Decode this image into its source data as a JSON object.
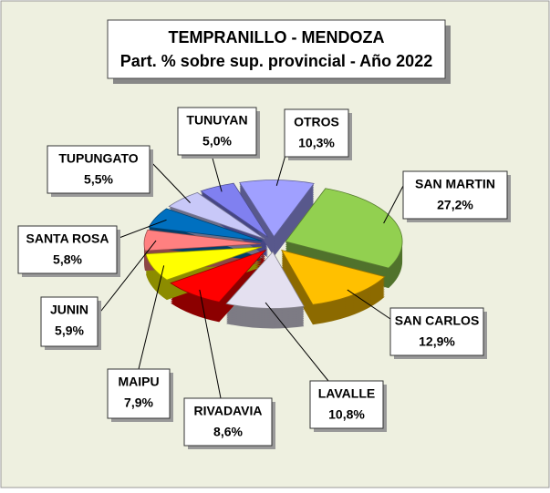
{
  "chart_data": {
    "type": "pie",
    "title": [
      "TEMPRANILLO - MENDOZA",
      "Part. % sobre sup. provincial - Año 2022"
    ],
    "categories": [
      "SAN MARTIN",
      "SAN CARLOS",
      "LAVALLE",
      "RIVADAVIA",
      "MAIPU",
      "JUNIN",
      "SANTA ROSA",
      "TUPUNGATO",
      "TUNUYAN",
      "OTROS"
    ],
    "values": [
      27.2,
      12.9,
      10.8,
      8.6,
      7.9,
      5.9,
      5.8,
      5.5,
      5.0,
      10.3
    ],
    "value_labels": [
      "27,2%",
      "12,9%",
      "10,8%",
      "8,6%",
      "7,9%",
      "5,9%",
      "5,8%",
      "5,5%",
      "5,0%",
      "10,3%"
    ],
    "colors": [
      "#92d050",
      "#ffc000",
      "#e4e0f0",
      "#ff0000",
      "#ffff00",
      "#ff8080",
      "#0070c0",
      "#c8c8f8",
      "#8080f0",
      "#a0a0ff"
    ]
  }
}
